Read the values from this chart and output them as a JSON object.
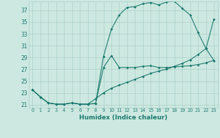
{
  "xlabel": "Humidex (Indice chaleur)",
  "bg_color": "#cce8e0",
  "grid_color": "#aacfc8",
  "line_color": "#1a7a6e",
  "xlim": [
    -0.5,
    23.5
  ],
  "ylim": [
    20.5,
    38.5
  ],
  "yticks": [
    21,
    23,
    25,
    27,
    29,
    31,
    33,
    35,
    37
  ],
  "xticks": [
    0,
    1,
    2,
    3,
    4,
    5,
    6,
    7,
    8,
    9,
    10,
    11,
    12,
    13,
    14,
    15,
    16,
    17,
    18,
    19,
    20,
    21,
    22,
    23
  ],
  "line1_x": [
    0,
    1,
    2,
    3,
    4,
    5,
    6,
    7,
    8,
    9,
    10,
    11,
    12,
    13,
    14,
    15,
    16,
    17,
    18,
    19,
    20,
    21,
    22,
    23
  ],
  "line1_y": [
    23.5,
    22.3,
    21.3,
    21.1,
    21.1,
    21.3,
    21.1,
    21.1,
    21.2,
    29.2,
    33.8,
    36.2,
    37.5,
    37.6,
    38.1,
    38.3,
    37.9,
    38.4,
    38.5,
    37.3,
    36.2,
    33.2,
    30.5,
    28.5
  ],
  "line2_x": [
    0,
    1,
    2,
    3,
    4,
    5,
    6,
    7,
    8,
    9,
    10,
    11,
    12,
    13,
    14,
    15,
    16,
    17,
    18,
    19,
    20,
    21,
    22,
    23
  ],
  "line2_y": [
    23.5,
    22.3,
    21.3,
    21.1,
    21.1,
    21.3,
    21.1,
    21.1,
    21.2,
    27.3,
    29.3,
    27.3,
    27.3,
    27.3,
    27.5,
    27.6,
    27.3,
    27.3,
    27.4,
    27.5,
    27.6,
    27.8,
    28.1,
    28.5
  ],
  "line3_x": [
    0,
    1,
    2,
    3,
    4,
    5,
    6,
    7,
    8,
    9,
    10,
    11,
    12,
    13,
    14,
    15,
    16,
    17,
    18,
    19,
    20,
    21,
    22,
    23
  ],
  "line3_y": [
    23.5,
    22.3,
    21.3,
    21.1,
    21.1,
    21.3,
    21.1,
    21.1,
    22.0,
    23.0,
    23.8,
    24.3,
    24.8,
    25.3,
    25.8,
    26.3,
    26.7,
    27.0,
    27.5,
    28.0,
    28.6,
    29.5,
    30.5,
    35.5
  ]
}
